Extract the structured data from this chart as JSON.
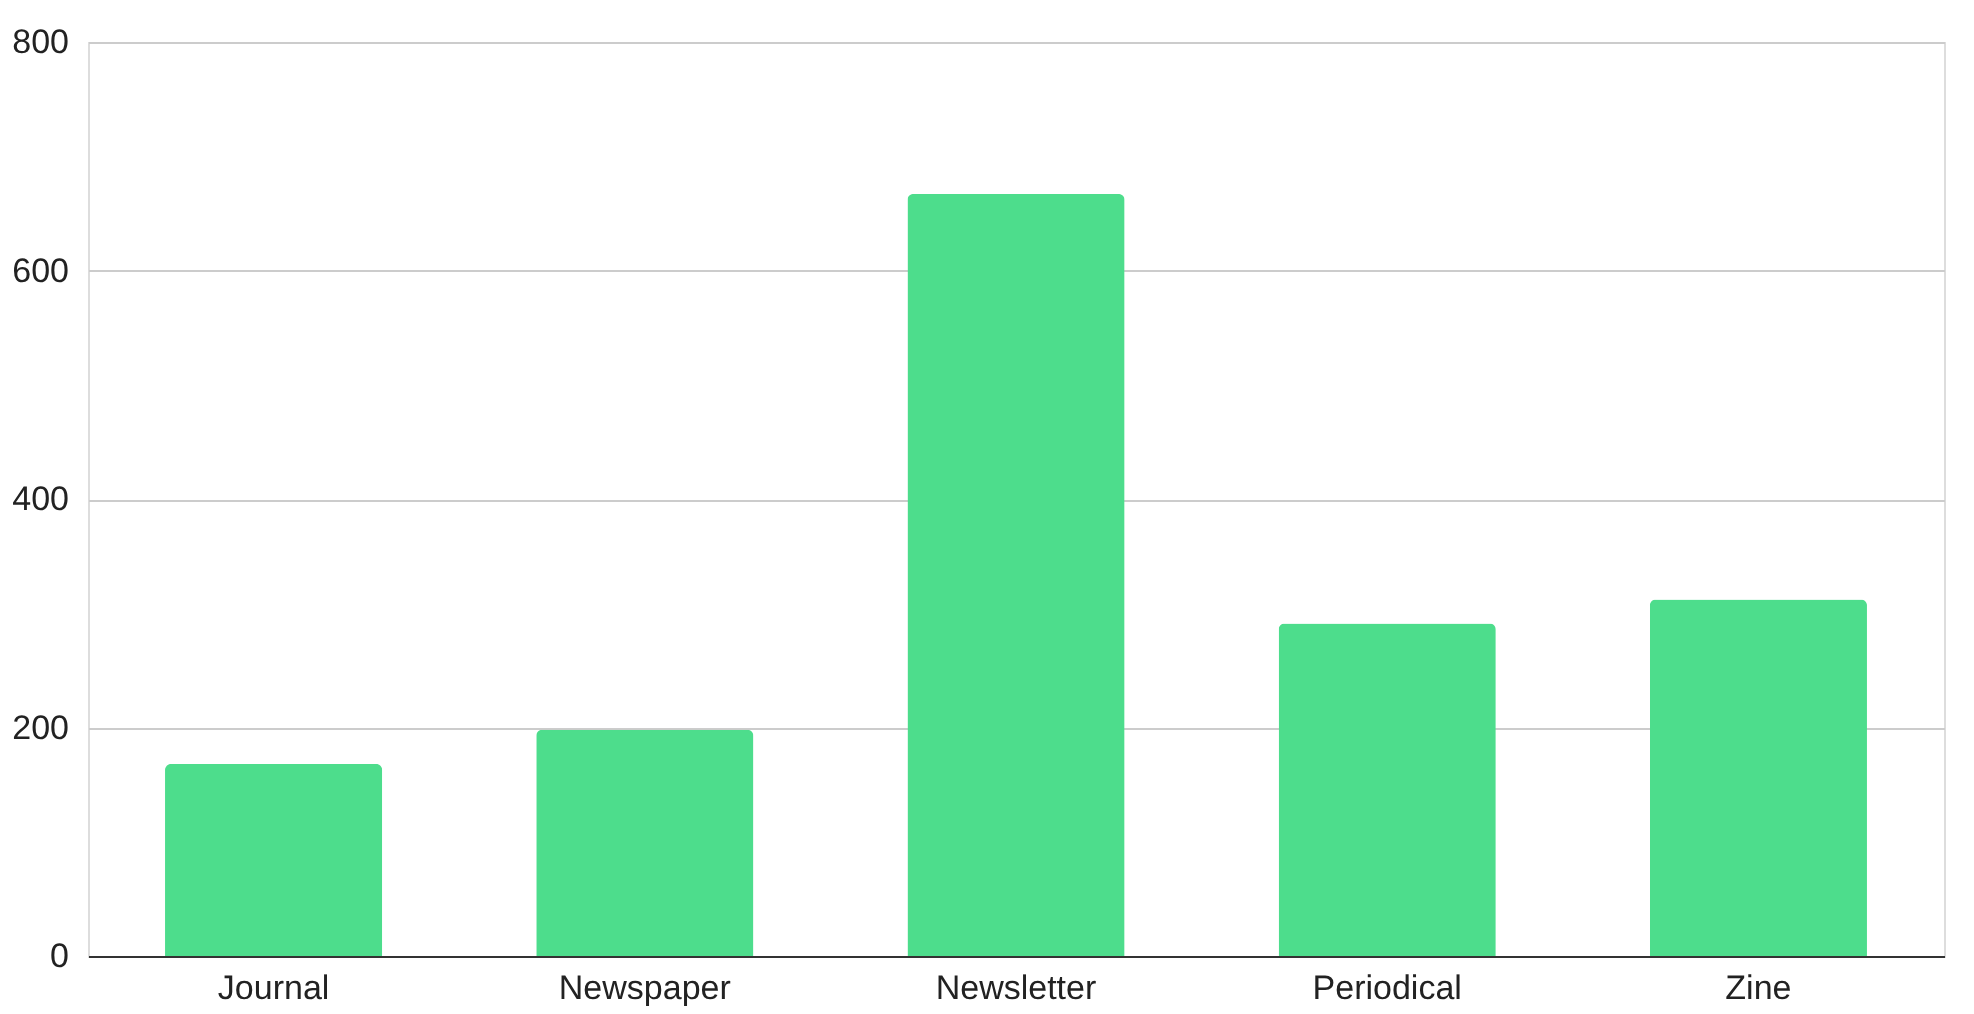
{
  "chart_data": {
    "type": "bar",
    "categories": [
      "Journal",
      "Newspaper",
      "Newsletter",
      "Periodical",
      "Zine"
    ],
    "values": [
      168,
      198,
      667,
      291,
      312
    ],
    "color": "#4ddd8c",
    "ylim": [
      0,
      800
    ],
    "yticks": [
      0,
      200,
      400,
      600,
      800
    ],
    "grid": "y"
  }
}
